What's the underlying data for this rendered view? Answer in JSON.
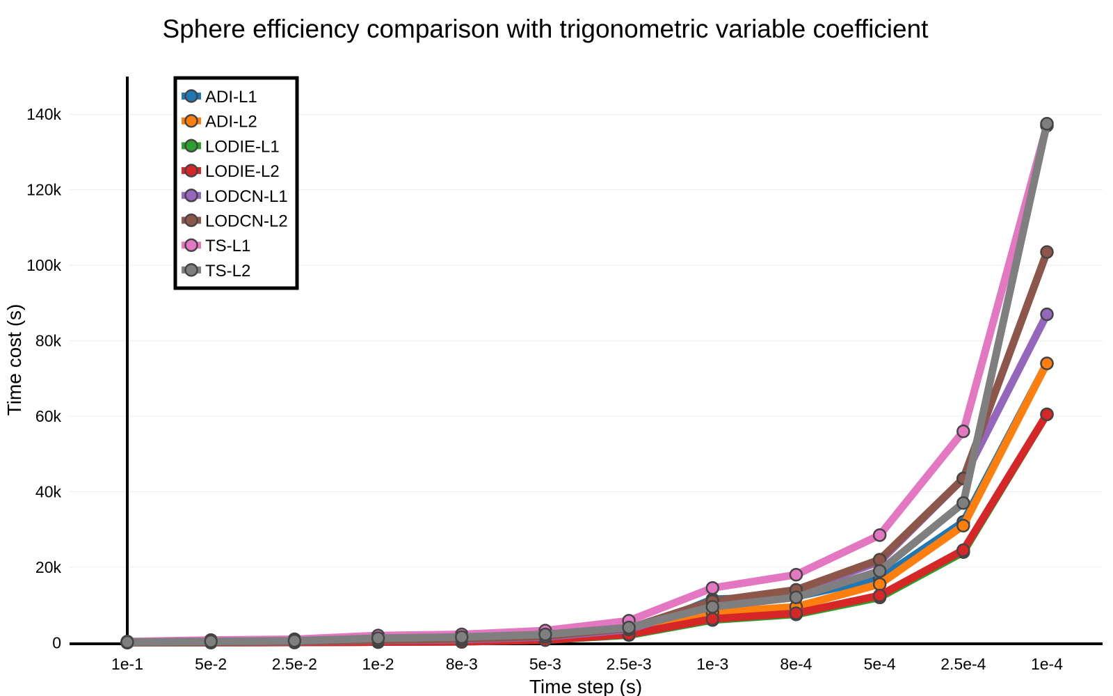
{
  "chart_data": {
    "type": "line",
    "title": "Sphere efficiency comparison with trigonometric variable coefficient",
    "xlabel": "Time step (s)",
    "ylabel": "Time cost (s)",
    "categories": [
      "1e-1",
      "5e-2",
      "2.5e-2",
      "1e-2",
      "8e-3",
      "5e-3",
      "2.5e-3",
      "1e-3",
      "8e-4",
      "5e-4",
      "2.5e-4",
      "1e-4"
    ],
    "ylim": [
      -300,
      150000
    ],
    "yticks": [
      0,
      20000,
      40000,
      60000,
      80000,
      100000,
      120000,
      140000
    ],
    "ytick_labels": [
      "0",
      "20k",
      "40k",
      "60k",
      "80k",
      "100k",
      "120k",
      "140k"
    ],
    "grid": true,
    "legend_position": "top-left",
    "series": [
      {
        "name": "ADI-L1",
        "color": "#1f77b4",
        "values": [
          40,
          80,
          160,
          400,
          550,
          900,
          2500,
          11500,
          12200,
          17000,
          32000,
          74000
        ]
      },
      {
        "name": "ADI-L2",
        "color": "#ff7f0e",
        "values": [
          35,
          70,
          140,
          350,
          500,
          850,
          2300,
          8000,
          9500,
          15500,
          31000,
          74000
        ]
      },
      {
        "name": "LODIE-L1",
        "color": "#2ca02c",
        "values": [
          15,
          30,
          60,
          150,
          220,
          700,
          2000,
          6000,
          7500,
          12000,
          24000,
          60500
        ]
      },
      {
        "name": "LODIE-L2",
        "color": "#d62728",
        "values": [
          15,
          30,
          60,
          150,
          220,
          700,
          2200,
          6300,
          7800,
          12500,
          24500,
          60500
        ]
      },
      {
        "name": "LODCN-L1",
        "color": "#9467bd",
        "values": [
          60,
          120,
          250,
          600,
          800,
          1500,
          3500,
          10500,
          13500,
          21500,
          43500,
          87000
        ]
      },
      {
        "name": "LODCN-L2",
        "color": "#8c564b",
        "values": [
          70,
          140,
          300,
          700,
          1000,
          1700,
          3800,
          11000,
          14000,
          22000,
          43500,
          103500
        ]
      },
      {
        "name": "TS-L1",
        "color": "#e377c2",
        "values": [
          300,
          700,
          900,
          1900,
          2200,
          3200,
          5800,
          14500,
          18000,
          28500,
          56000,
          137000
        ]
      },
      {
        "name": "TS-L2",
        "color": "#7f7f7f",
        "values": [
          150,
          350,
          500,
          1200,
          1500,
          2200,
          4000,
          9500,
          12000,
          19000,
          37000,
          137500
        ]
      }
    ]
  }
}
